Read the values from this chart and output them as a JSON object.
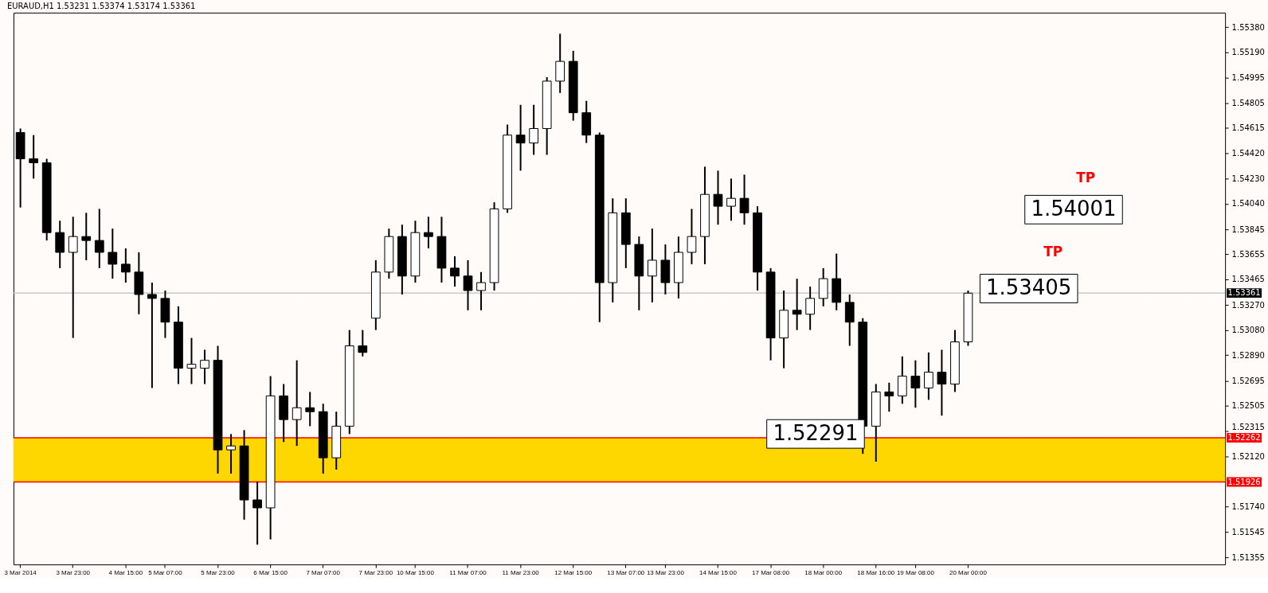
{
  "chart_data": {
    "type": "candlestick",
    "title": "EURAUD,H1  1.53231 1.53374 1.53174 1.53361",
    "categories": [
      "3 Mar 2014",
      null,
      null,
      null,
      "3 Mar 23:00",
      null,
      null,
      null,
      "4 Mar 15:00",
      null,
      null,
      "5 Mar 07:00",
      null,
      null,
      null,
      "5 Mar 23:00",
      null,
      null,
      null,
      "6 Mar 15:00",
      null,
      null,
      null,
      "7 Mar 07:00",
      null,
      null,
      null,
      "7 Mar 23:00",
      null,
      null,
      "10 Mar 15:00",
      null,
      null,
      null,
      "11 Mar 07:00",
      null,
      null,
      null,
      "11 Mar 23:00",
      null,
      null,
      null,
      "12 Mar 15:00",
      null,
      null,
      null,
      "13 Mar 07:00",
      null,
      null,
      "13 Mar 23:00",
      null,
      null,
      null,
      "14 Mar 15:00",
      null,
      null,
      null,
      "17 Mar 08:00",
      null,
      null,
      null,
      "18 Mar 00:00",
      null,
      null,
      null,
      "18 Mar 16:00",
      null,
      null,
      "19 Mar 08:00",
      null,
      null,
      null,
      "20 Mar 00:00",
      null,
      null,
      null,
      null,
      null,
      null,
      null,
      null,
      null,
      null,
      null,
      null,
      null,
      null,
      null,
      null,
      null,
      null,
      null
    ],
    "ohlc": [
      [
        1.5458,
        1.5461,
        1.5401,
        1.5438
      ],
      [
        1.5438,
        1.5456,
        1.5423,
        1.5435
      ],
      [
        1.5435,
        1.5438,
        1.5376,
        1.5382
      ],
      [
        1.5382,
        1.5391,
        1.5355,
        1.5367
      ],
      [
        1.5367,
        1.5394,
        1.5302,
        1.5379
      ],
      [
        1.5379,
        1.5397,
        1.5361,
        1.5376
      ],
      [
        1.5376,
        1.54,
        1.5355,
        1.5367
      ],
      [
        1.5367,
        1.5385,
        1.5347,
        1.5358
      ],
      [
        1.5358,
        1.537,
        1.5344,
        1.5352
      ],
      [
        1.5352,
        1.5367,
        1.532,
        1.5335
      ],
      [
        1.5335,
        1.5344,
        1.5264,
        1.5332
      ],
      [
        1.5332,
        1.5338,
        1.5302,
        1.5314
      ],
      [
        1.5314,
        1.5326,
        1.5267,
        1.5279
      ],
      [
        1.5279,
        1.5302,
        1.5267,
        1.5282
      ],
      [
        1.5279,
        1.5293,
        1.5267,
        1.5285
      ],
      [
        1.5285,
        1.5296,
        1.5199,
        1.5217
      ],
      [
        1.5217,
        1.5229,
        1.5199,
        1.522
      ],
      [
        1.522,
        1.5232,
        1.5164,
        1.5179
      ],
      [
        1.5179,
        1.5193,
        1.5145,
        1.5173
      ],
      [
        1.5173,
        1.5273,
        1.5149,
        1.5258
      ],
      [
        1.5258,
        1.5267,
        1.5223,
        1.524
      ],
      [
        1.524,
        1.5285,
        1.522,
        1.5249
      ],
      [
        1.5249,
        1.5261,
        1.5235,
        1.5246
      ],
      [
        1.5246,
        1.5252,
        1.5199,
        1.5211
      ],
      [
        1.5211,
        1.5246,
        1.5202,
        1.5235
      ],
      [
        1.5235,
        1.5308,
        1.5229,
        1.5296
      ],
      [
        1.5296,
        1.5308,
        1.5288,
        1.5291
      ],
      [
        1.5317,
        1.5361,
        1.5308,
        1.5352
      ],
      [
        1.5352,
        1.5385,
        1.5347,
        1.5379
      ],
      [
        1.5379,
        1.5388,
        1.5335,
        1.5349
      ],
      [
        1.5349,
        1.5391,
        1.5344,
        1.5382
      ],
      [
        1.5382,
        1.5394,
        1.537,
        1.5379
      ],
      [
        1.5379,
        1.5394,
        1.5344,
        1.5355
      ],
      [
        1.5355,
        1.5364,
        1.5341,
        1.5349
      ],
      [
        1.5349,
        1.5361,
        1.5323,
        1.5338
      ],
      [
        1.5338,
        1.5352,
        1.5323,
        1.5344
      ],
      [
        1.5344,
        1.5405,
        1.5338,
        1.54
      ],
      [
        1.54,
        1.5464,
        1.5397,
        1.5456
      ],
      [
        1.5456,
        1.5479,
        1.5429,
        1.545
      ],
      [
        1.545,
        1.5479,
        1.5441,
        1.5461
      ],
      [
        1.5461,
        1.55,
        1.5441,
        1.5497
      ],
      [
        1.5497,
        1.5533,
        1.5488,
        1.5512
      ],
      [
        1.5512,
        1.552,
        1.5467,
        1.5473
      ],
      [
        1.5473,
        1.5482,
        1.545,
        1.5456
      ],
      [
        1.5456,
        1.5458,
        1.5314,
        1.5344
      ],
      [
        1.5344,
        1.5408,
        1.5329,
        1.5397
      ],
      [
        1.5397,
        1.5408,
        1.5355,
        1.5373
      ],
      [
        1.5373,
        1.5379,
        1.5323,
        1.5349
      ],
      [
        1.5349,
        1.5385,
        1.5329,
        1.5361
      ],
      [
        1.5361,
        1.5373,
        1.5335,
        1.5344
      ],
      [
        1.5344,
        1.5379,
        1.5332,
        1.5367
      ],
      [
        1.5367,
        1.54,
        1.5358,
        1.5379
      ],
      [
        1.5379,
        1.5432,
        1.5358,
        1.5411
      ],
      [
        1.5411,
        1.5429,
        1.5388,
        1.5402
      ],
      [
        1.5402,
        1.5423,
        1.5391,
        1.5408
      ],
      [
        1.5408,
        1.5426,
        1.5388,
        1.5397
      ],
      [
        1.5397,
        1.5402,
        1.5338,
        1.5352
      ],
      [
        1.5352,
        1.5355,
        1.5285,
        1.5302
      ],
      [
        1.5302,
        1.5338,
        1.5279,
        1.5323
      ],
      [
        1.5323,
        1.5347,
        1.5308,
        1.532
      ],
      [
        1.532,
        1.5341,
        1.5308,
        1.5332
      ],
      [
        1.5332,
        1.5355,
        1.5326,
        1.5347
      ],
      [
        1.5347,
        1.5366,
        1.5323,
        1.5329
      ],
      [
        1.5329,
        1.5335,
        1.5296,
        1.5314
      ],
      [
        1.5314,
        1.5317,
        1.5214,
        1.5235
      ],
      [
        1.5235,
        1.5267,
        1.5208,
        1.5261
      ],
      [
        1.5261,
        1.5268,
        1.5246,
        1.5258
      ],
      [
        1.5258,
        1.5288,
        1.5252,
        1.5273
      ],
      [
        1.5273,
        1.5285,
        1.5249,
        1.5264
      ],
      [
        1.5264,
        1.5291,
        1.5255,
        1.5276
      ],
      [
        1.5276,
        1.5293,
        1.5243,
        1.5267
      ],
      [
        1.5267,
        1.5308,
        1.5261,
        1.5299
      ],
      [
        1.5299,
        1.5338,
        1.5296,
        1.5336
      ],
      null,
      null,
      null,
      null,
      null,
      null,
      null,
      null,
      null,
      null,
      null,
      null,
      null,
      null,
      null,
      null,
      null,
      null,
      null
    ],
    "ylim": [
      1.513,
      1.5549
    ],
    "yticks": [
      {
        "value": 1.5538,
        "label": "1.55380"
      },
      {
        "value": 1.5519,
        "label": "1.55190"
      },
      {
        "value": 1.54995,
        "label": "1.54995"
      },
      {
        "value": 1.54805,
        "label": "1.54805"
      },
      {
        "value": 1.54615,
        "label": "1.54615"
      },
      {
        "value": 1.5442,
        "label": "1.54420"
      },
      {
        "value": 1.5423,
        "label": "1.54230"
      },
      {
        "value": 1.5404,
        "label": "1.54040"
      },
      {
        "value": 1.53845,
        "label": "1.53845"
      },
      {
        "value": 1.53655,
        "label": "1.53655"
      },
      {
        "value": 1.53465,
        "label": "1.53465"
      },
      {
        "value": 1.5327,
        "label": "1.53270"
      },
      {
        "value": 1.5308,
        "label": "1.53080"
      },
      {
        "value": 1.5289,
        "label": "1.52890"
      },
      {
        "value": 1.52695,
        "label": "1.52695"
      },
      {
        "value": 1.52505,
        "label": "1.52505"
      },
      {
        "value": 1.52315,
        "label": "1.52315"
      },
      {
        "value": 1.5212,
        "label": "1.52120"
      },
      {
        "value": 1.5174,
        "label": "1.51740"
      },
      {
        "value": 1.51545,
        "label": "1.51545"
      },
      {
        "value": 1.51355,
        "label": "1.51355"
      }
    ],
    "bands": [
      {
        "axis": "y",
        "from": 1.51926,
        "to": 1.52262,
        "color": "#ffd700"
      }
    ],
    "ref_lines": [
      {
        "axis": "y",
        "value": 1.53361,
        "label": "1.53361",
        "color": "#c0c0c0"
      },
      {
        "axis": "y",
        "value": 1.52262,
        "label": "1.52262",
        "color": "#ff0000"
      },
      {
        "axis": "y",
        "value": 1.51926,
        "label": "1.51926",
        "color": "#ff0000"
      }
    ],
    "annotations": [
      "TP",
      "1.54001",
      "TP",
      "1.53405",
      {
        "text": "1.52291",
        "y": 1.52291
      }
    ]
  }
}
